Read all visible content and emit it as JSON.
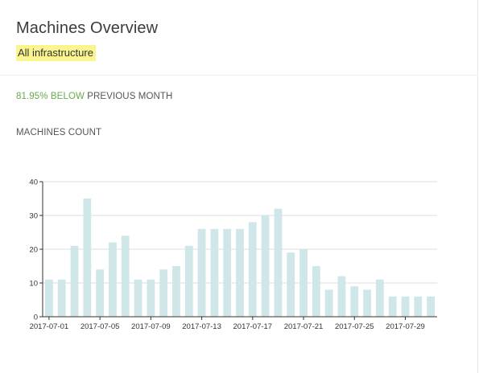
{
  "header": {
    "title": "Machines Overview",
    "subtitle": "All infrastructure"
  },
  "summary": {
    "percent": "81.95%",
    "direction": "BELOW",
    "comparison": "PREVIOUS MONTH"
  },
  "metric_label": "MACHINES COUNT",
  "colors": {
    "bar": "#cfe7e8",
    "positive": "#6aa84f",
    "highlight": "#fbf58f",
    "grid": "#dddddd"
  },
  "chart_data": {
    "type": "bar",
    "title": "",
    "xlabel": "",
    "ylabel": "",
    "ylim": [
      0,
      40
    ],
    "yticks": [
      0,
      10,
      20,
      30,
      40
    ],
    "grid": true,
    "categories": [
      "2017-07-01",
      "2017-07-02",
      "2017-07-03",
      "2017-07-04",
      "2017-07-05",
      "2017-07-06",
      "2017-07-07",
      "2017-07-08",
      "2017-07-09",
      "2017-07-10",
      "2017-07-11",
      "2017-07-12",
      "2017-07-13",
      "2017-07-14",
      "2017-07-15",
      "2017-07-16",
      "2017-07-17",
      "2017-07-18",
      "2017-07-19",
      "2017-07-20",
      "2017-07-21",
      "2017-07-22",
      "2017-07-23",
      "2017-07-24",
      "2017-07-25",
      "2017-07-26",
      "2017-07-27",
      "2017-07-28",
      "2017-07-29",
      "2017-07-30",
      "2017-07-31"
    ],
    "values": [
      11,
      11,
      21,
      35,
      14,
      22,
      24,
      11,
      11,
      14,
      15,
      21,
      26,
      26,
      26,
      26,
      28,
      30,
      32,
      19,
      20,
      15,
      8,
      12,
      9,
      8,
      11,
      6,
      6,
      6,
      6
    ],
    "xtick_labels": [
      "2017-07-01",
      "2017-07-05",
      "2017-07-09",
      "2017-07-13",
      "2017-07-17",
      "2017-07-21",
      "2017-07-25",
      "2017-07-29"
    ]
  }
}
